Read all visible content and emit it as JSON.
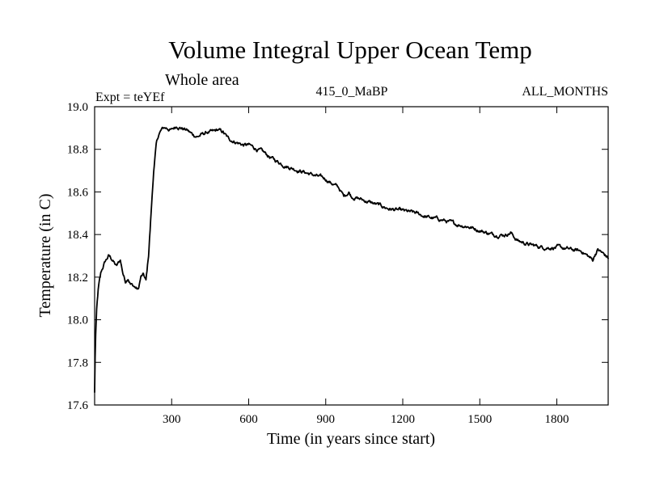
{
  "chart_data": {
    "type": "line",
    "title": "Volume Integral Upper Ocean Temp",
    "subtitle": "Whole area",
    "experiment_label": "Expt = teYEf",
    "period_label": "415_0_MaBP",
    "months_label": "ALL_MONTHS",
    "xlabel": "Time (in years since start)",
    "ylabel": "Temperature (in C)",
    "xlim": [
      0,
      2000
    ],
    "ylim": [
      17.6,
      19.0
    ],
    "x_ticks": [
      300,
      600,
      900,
      1200,
      1500,
      1800
    ],
    "y_ticks": [
      17.6,
      17.8,
      18.0,
      18.2,
      18.4,
      18.6,
      18.8,
      19.0
    ],
    "y_tick_labels": [
      "17.6",
      "17.8",
      "18.0",
      "18.2",
      "18.4",
      "18.6",
      "18.8",
      "19.0"
    ],
    "grid": false,
    "series": [
      {
        "name": "Volume integral upper ocean temperature",
        "color": "#000000",
        "x": [
          0,
          3,
          8,
          15,
          25,
          40,
          55,
          70,
          85,
          100,
          110,
          120,
          130,
          140,
          150,
          160,
          170,
          180,
          190,
          200,
          210,
          220,
          230,
          240,
          250,
          260,
          270,
          280,
          300,
          320,
          340,
          360,
          380,
          400,
          420,
          440,
          460,
          480,
          500,
          520,
          540,
          560,
          580,
          600,
          650,
          700,
          750,
          800,
          850,
          900,
          950,
          970,
          990,
          1000,
          1050,
          1100,
          1150,
          1200,
          1250,
          1300,
          1350,
          1400,
          1450,
          1500,
          1550,
          1600,
          1620,
          1640,
          1650,
          1700,
          1750,
          1800,
          1850,
          1900,
          1920,
          1940,
          1950,
          1960,
          1980,
          2000
        ],
        "values": [
          17.66,
          17.9,
          18.05,
          18.15,
          18.22,
          18.27,
          18.3,
          18.28,
          18.25,
          18.28,
          18.22,
          18.18,
          18.2,
          18.17,
          18.16,
          18.15,
          18.14,
          18.2,
          18.21,
          18.18,
          18.3,
          18.5,
          18.7,
          18.82,
          18.87,
          18.89,
          18.9,
          18.9,
          18.89,
          18.91,
          18.9,
          18.89,
          18.87,
          18.86,
          18.87,
          18.88,
          18.88,
          18.89,
          18.88,
          18.85,
          18.84,
          18.83,
          18.82,
          18.82,
          18.79,
          18.75,
          18.72,
          18.7,
          18.68,
          18.66,
          18.62,
          18.58,
          18.6,
          18.58,
          18.56,
          18.54,
          18.52,
          18.51,
          18.5,
          18.48,
          18.47,
          18.45,
          18.44,
          18.42,
          18.4,
          18.4,
          18.41,
          18.38,
          18.37,
          18.35,
          18.34,
          18.34,
          18.33,
          18.32,
          18.3,
          18.28,
          18.31,
          18.33,
          18.31,
          18.29
        ]
      }
    ]
  }
}
